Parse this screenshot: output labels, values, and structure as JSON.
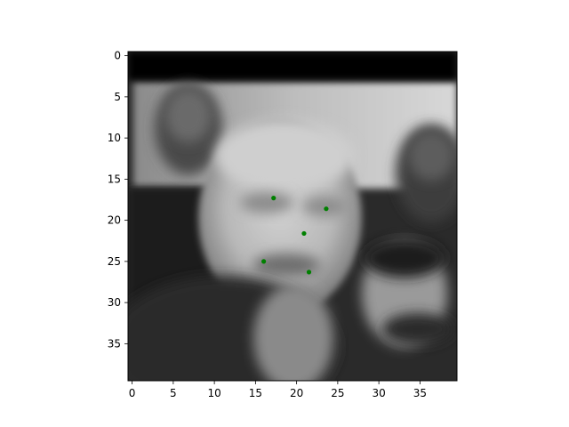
{
  "chart_data": {
    "type": "scatter",
    "title": "",
    "xlabel": "",
    "ylabel": "",
    "background": "grayscale face image (40x40 px, blurred)",
    "xlim": [
      -0.5,
      39.5
    ],
    "ylim": [
      39.5,
      -0.5
    ],
    "y_inverted": true,
    "x_ticks": [
      0,
      5,
      10,
      15,
      20,
      25,
      30,
      35
    ],
    "y_ticks": [
      0,
      5,
      10,
      15,
      20,
      25,
      30,
      35
    ],
    "grid": false,
    "legend": "none",
    "series": [
      {
        "marker_color": "#008000",
        "points": [
          {
            "x": 17.2,
            "y": 17.3
          },
          {
            "x": 23.6,
            "y": 18.6
          },
          {
            "x": 20.9,
            "y": 21.6
          },
          {
            "x": 16.0,
            "y": 25.0
          },
          {
            "x": 21.5,
            "y": 26.3
          }
        ]
      }
    ]
  }
}
